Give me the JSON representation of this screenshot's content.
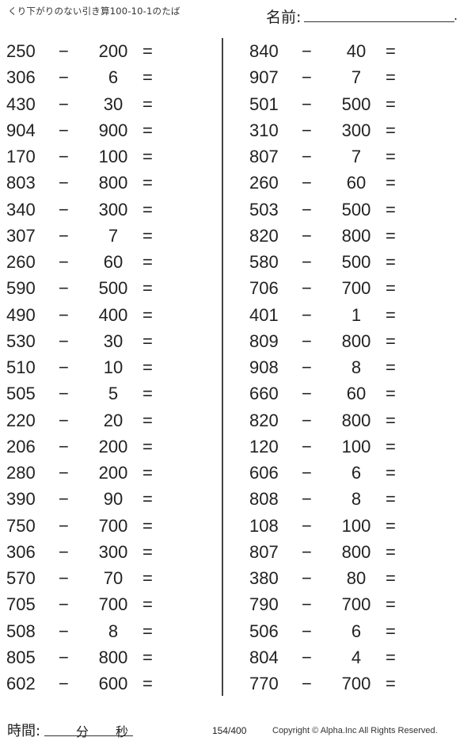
{
  "header": {
    "title": "くり下がりのない引き算100-10-1のたば",
    "name_label": "名前:",
    "name_value": "",
    "name_end": "."
  },
  "symbols": {
    "minus": "−",
    "equals": "="
  },
  "left_problems": [
    [
      "250",
      "200"
    ],
    [
      "306",
      "6"
    ],
    [
      "430",
      "30"
    ],
    [
      "904",
      "900"
    ],
    [
      "170",
      "100"
    ],
    [
      "803",
      "800"
    ],
    [
      "340",
      "300"
    ],
    [
      "307",
      "7"
    ],
    [
      "260",
      "60"
    ],
    [
      "590",
      "500"
    ],
    [
      "490",
      "400"
    ],
    [
      "530",
      "30"
    ],
    [
      "510",
      "10"
    ],
    [
      "505",
      "5"
    ],
    [
      "220",
      "20"
    ],
    [
      "206",
      "200"
    ],
    [
      "280",
      "200"
    ],
    [
      "390",
      "90"
    ],
    [
      "750",
      "700"
    ],
    [
      "306",
      "300"
    ],
    [
      "570",
      "70"
    ],
    [
      "705",
      "700"
    ],
    [
      "508",
      "8"
    ],
    [
      "805",
      "800"
    ],
    [
      "602",
      "600"
    ]
  ],
  "right_problems": [
    [
      "840",
      "40"
    ],
    [
      "907",
      "7"
    ],
    [
      "501",
      "500"
    ],
    [
      "310",
      "300"
    ],
    [
      "807",
      "7"
    ],
    [
      "260",
      "60"
    ],
    [
      "503",
      "500"
    ],
    [
      "820",
      "800"
    ],
    [
      "580",
      "500"
    ],
    [
      "706",
      "700"
    ],
    [
      "401",
      "1"
    ],
    [
      "809",
      "800"
    ],
    [
      "908",
      "8"
    ],
    [
      "660",
      "60"
    ],
    [
      "820",
      "800"
    ],
    [
      "120",
      "100"
    ],
    [
      "606",
      "6"
    ],
    [
      "808",
      "8"
    ],
    [
      "108",
      "100"
    ],
    [
      "807",
      "800"
    ],
    [
      "380",
      "80"
    ],
    [
      "790",
      "700"
    ],
    [
      "506",
      "6"
    ],
    [
      "804",
      "4"
    ],
    [
      "770",
      "700"
    ]
  ],
  "footer": {
    "time_label": "時間:",
    "minutes_label": "分",
    "seconds_label": "秒",
    "page": "154/400",
    "copyright": "Copyright ©  Alpha.Inc All Rights Reserved."
  }
}
